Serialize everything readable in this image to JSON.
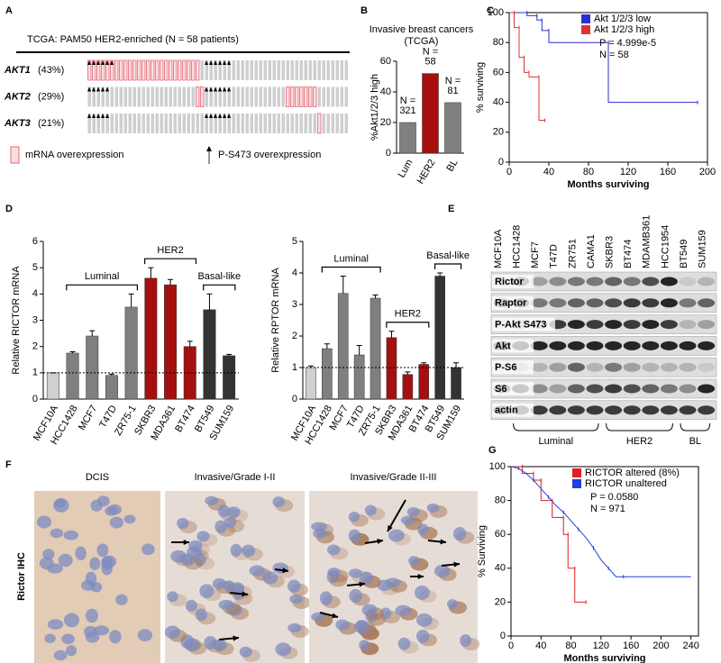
{
  "panel_letters": [
    "A",
    "B",
    "C",
    "D",
    "E",
    "F",
    "G"
  ],
  "oncoprint": {
    "title": "TCGA: PAM50 HER2-enriched (N = 58 patients)",
    "samples": 58,
    "rows": [
      {
        "gene": "AKT1",
        "percent": "(43%)",
        "mrna": [
          0,
          1,
          2,
          3,
          4,
          5,
          6,
          7,
          8,
          9,
          10,
          11,
          12,
          13,
          14,
          15,
          16,
          17,
          18,
          19,
          20,
          21,
          22,
          23,
          24
        ],
        "p_s473": [
          0,
          1,
          2,
          3,
          4,
          5,
          26,
          27,
          28,
          29,
          30,
          31
        ]
      },
      {
        "gene": "AKT2",
        "percent": "(29%)",
        "mrna": [
          24,
          25,
          44,
          45,
          46,
          47,
          48,
          49,
          50
        ],
        "p_s473": [
          0,
          1,
          2,
          3,
          4,
          26,
          27,
          28,
          29,
          30,
          31
        ]
      },
      {
        "gene": "AKT3",
        "percent": "(21%)",
        "mrna": [
          51
        ],
        "p_s473": [
          0,
          1,
          2,
          3,
          4,
          26,
          27,
          28,
          29,
          30,
          31
        ]
      }
    ],
    "legend": [
      "mRNA overexpression",
      "P-S473 overexpression"
    ]
  },
  "western_blot": {
    "cell_lines": [
      {
        "name": "MCF10A",
        "color": "#000000"
      },
      {
        "name": "HCC1428",
        "color": "#000000"
      },
      {
        "name": "MCF7",
        "color": "#000000"
      },
      {
        "name": "T47D",
        "color": "#000000"
      },
      {
        "name": "ZR751",
        "color": "#000000"
      },
      {
        "name": "CAMA1",
        "color": "#000000"
      },
      {
        "name": "SKBR3",
        "color": "#c0151b"
      },
      {
        "name": "BT474",
        "color": "#c0151b"
      },
      {
        "name": "MDAMB361",
        "color": "#c0151b"
      },
      {
        "name": "HCC1954",
        "color": "#c0151b"
      },
      {
        "name": "BT549",
        "color": "#000000"
      },
      {
        "name": "SUM159",
        "color": "#000000"
      }
    ],
    "proteins": [
      "Rictor",
      "Raptor",
      "P-Akt S473",
      "Akt",
      "P-S6",
      "S6",
      "actin"
    ],
    "groups": [
      {
        "name": "Luminal",
        "color": "#000000",
        "from": 1,
        "to": 5
      },
      {
        "name": "HER2",
        "color": "#c0151b",
        "from": 6,
        "to": 9
      },
      {
        "name": "BL",
        "color": "#000000",
        "from": 10,
        "to": 11
      }
    ]
  },
  "ihc": {
    "row_label": "Rictor IHC",
    "panels": [
      "DCIS",
      "Invasive/Grade I-II",
      "Invasive/Grade II-III"
    ]
  },
  "chart_data": [
    {
      "type": "bar",
      "title": [
        "Invasive breast cancers",
        "(TCGA)"
      ],
      "ylabel": "%Akt1/2/3 high",
      "categories": [
        "Lum",
        "HER2",
        "BL"
      ],
      "values": [
        20,
        52,
        33
      ],
      "colors": [
        "#808080",
        "#a50f0f",
        "#808080"
      ],
      "n_labels": [
        [
          "N =",
          "321"
        ],
        [
          "N =",
          "58"
        ],
        [
          "N =",
          "81"
        ]
      ],
      "ylim": [
        0,
        60
      ],
      "yticks": [
        0,
        20,
        40,
        60
      ]
    },
    {
      "type": "survival",
      "xlabel": "Months surviving",
      "ylabel": "% surviving",
      "xlim": [
        0,
        200
      ],
      "xticks": [
        0,
        40,
        80,
        120,
        160,
        200
      ],
      "ylim": [
        0,
        100
      ],
      "yticks": [
        0,
        20,
        40,
        60,
        80,
        100
      ],
      "series": [
        {
          "name": "Akt 1/2/3 low",
          "color": "#2f2fd0",
          "x": [
            0,
            18,
            18,
            28,
            28,
            33,
            33,
            40,
            40,
            100,
            100,
            190
          ],
          "y": [
            100,
            100,
            98,
            98,
            95,
            95,
            88,
            88,
            80,
            80,
            40,
            40
          ]
        },
        {
          "name": "Akt 1/2/3 high",
          "color": "#e03030",
          "x": [
            0,
            5,
            5,
            10,
            10,
            15,
            15,
            20,
            20,
            30,
            30,
            36
          ],
          "y": [
            100,
            100,
            90,
            90,
            70,
            70,
            60,
            60,
            57,
            57,
            28,
            28
          ]
        }
      ],
      "stats": [
        "P = 4.999e-5",
        "N = 58"
      ],
      "legend": "upper right"
    },
    {
      "type": "bar",
      "ylabel": "Relative RICTOR mRNA",
      "categories": [
        "MCF10A",
        "HCC1428",
        "MCF7",
        "T47D",
        "ZR75-1",
        "SKBR3",
        "MDA361",
        "BT474",
        "BT549",
        "SUM159"
      ],
      "values": [
        1,
        1.75,
        2.4,
        0.9,
        3.5,
        4.6,
        4.35,
        2.0,
        3.4,
        1.65
      ],
      "errors": [
        0,
        0.05,
        0.2,
        0.05,
        0.5,
        0.4,
        0.2,
        0.2,
        0.6,
        0.05
      ],
      "colors": [
        "#d0d0d0",
        "#7f7f7f",
        "#7f7f7f",
        "#7f7f7f",
        "#7f7f7f",
        "#a50f0f",
        "#a50f0f",
        "#a50f0f",
        "#333333",
        "#333333"
      ],
      "reference_line": 1,
      "groups": [
        {
          "name": "Luminal",
          "from": 1,
          "to": 4
        },
        {
          "name": "HER2",
          "from": 5,
          "to": 7
        },
        {
          "name": "Basal-like",
          "from": 8,
          "to": 9
        }
      ],
      "ylim": [
        0,
        6
      ],
      "yticks": [
        0,
        1,
        2,
        3,
        4,
        5,
        6
      ]
    },
    {
      "type": "bar",
      "ylabel": "Relative RPTOR mRNA",
      "categories": [
        "MCF10A",
        "HCC1428",
        "MCF7",
        "T47D",
        "ZR75-1",
        "SKBR3",
        "MDA361",
        "BT474",
        "BT549",
        "SUM159"
      ],
      "values": [
        1.0,
        1.6,
        3.35,
        1.4,
        3.2,
        1.95,
        0.78,
        1.1,
        3.9,
        1.0
      ],
      "errors": [
        0.05,
        0.15,
        0.55,
        0.3,
        0.1,
        0.2,
        0.08,
        0.05,
        0.1,
        0.15
      ],
      "colors": [
        "#d0d0d0",
        "#7f7f7f",
        "#7f7f7f",
        "#7f7f7f",
        "#7f7f7f",
        "#a50f0f",
        "#a50f0f",
        "#a50f0f",
        "#333333",
        "#333333"
      ],
      "reference_line": 1,
      "groups": [
        {
          "name": "Luminal",
          "from": 1,
          "to": 4
        },
        {
          "name": "HER2",
          "from": 5,
          "to": 7
        },
        {
          "name": "Basal-like",
          "from": 8,
          "to": 9
        }
      ],
      "ylim": [
        0,
        5
      ],
      "yticks": [
        0,
        1,
        2,
        3,
        4,
        5
      ]
    },
    {
      "type": "survival",
      "xlabel": "Months surviving",
      "ylabel": "% Surviving",
      "xlim": [
        0,
        250
      ],
      "xticks": [
        0,
        40,
        80,
        120,
        160,
        200,
        240
      ],
      "ylim": [
        0,
        100
      ],
      "yticks": [
        0,
        20,
        40,
        60,
        80,
        100
      ],
      "series": [
        {
          "name": "RICTOR altered (8%)",
          "color": "#e02020",
          "x": [
            0,
            15,
            15,
            30,
            30,
            40,
            40,
            55,
            55,
            70,
            70,
            76,
            76,
            85,
            85,
            100
          ],
          "y": [
            100,
            100,
            96,
            96,
            92,
            92,
            80,
            80,
            70,
            70,
            60,
            60,
            40,
            40,
            20,
            20
          ]
        },
        {
          "name": "RICTOR unaltered",
          "color": "#2040e0",
          "x": [
            0,
            10,
            20,
            30,
            40,
            50,
            60,
            70,
            80,
            90,
            100,
            110,
            120,
            130,
            140,
            150,
            240
          ],
          "y": [
            100,
            99,
            96,
            92,
            87,
            82,
            77,
            73,
            68,
            63,
            58,
            52,
            45,
            40,
            35,
            35,
            35
          ]
        }
      ],
      "stats": [
        "P = 0.0580",
        "N = 971"
      ],
      "legend": "upper right"
    }
  ]
}
